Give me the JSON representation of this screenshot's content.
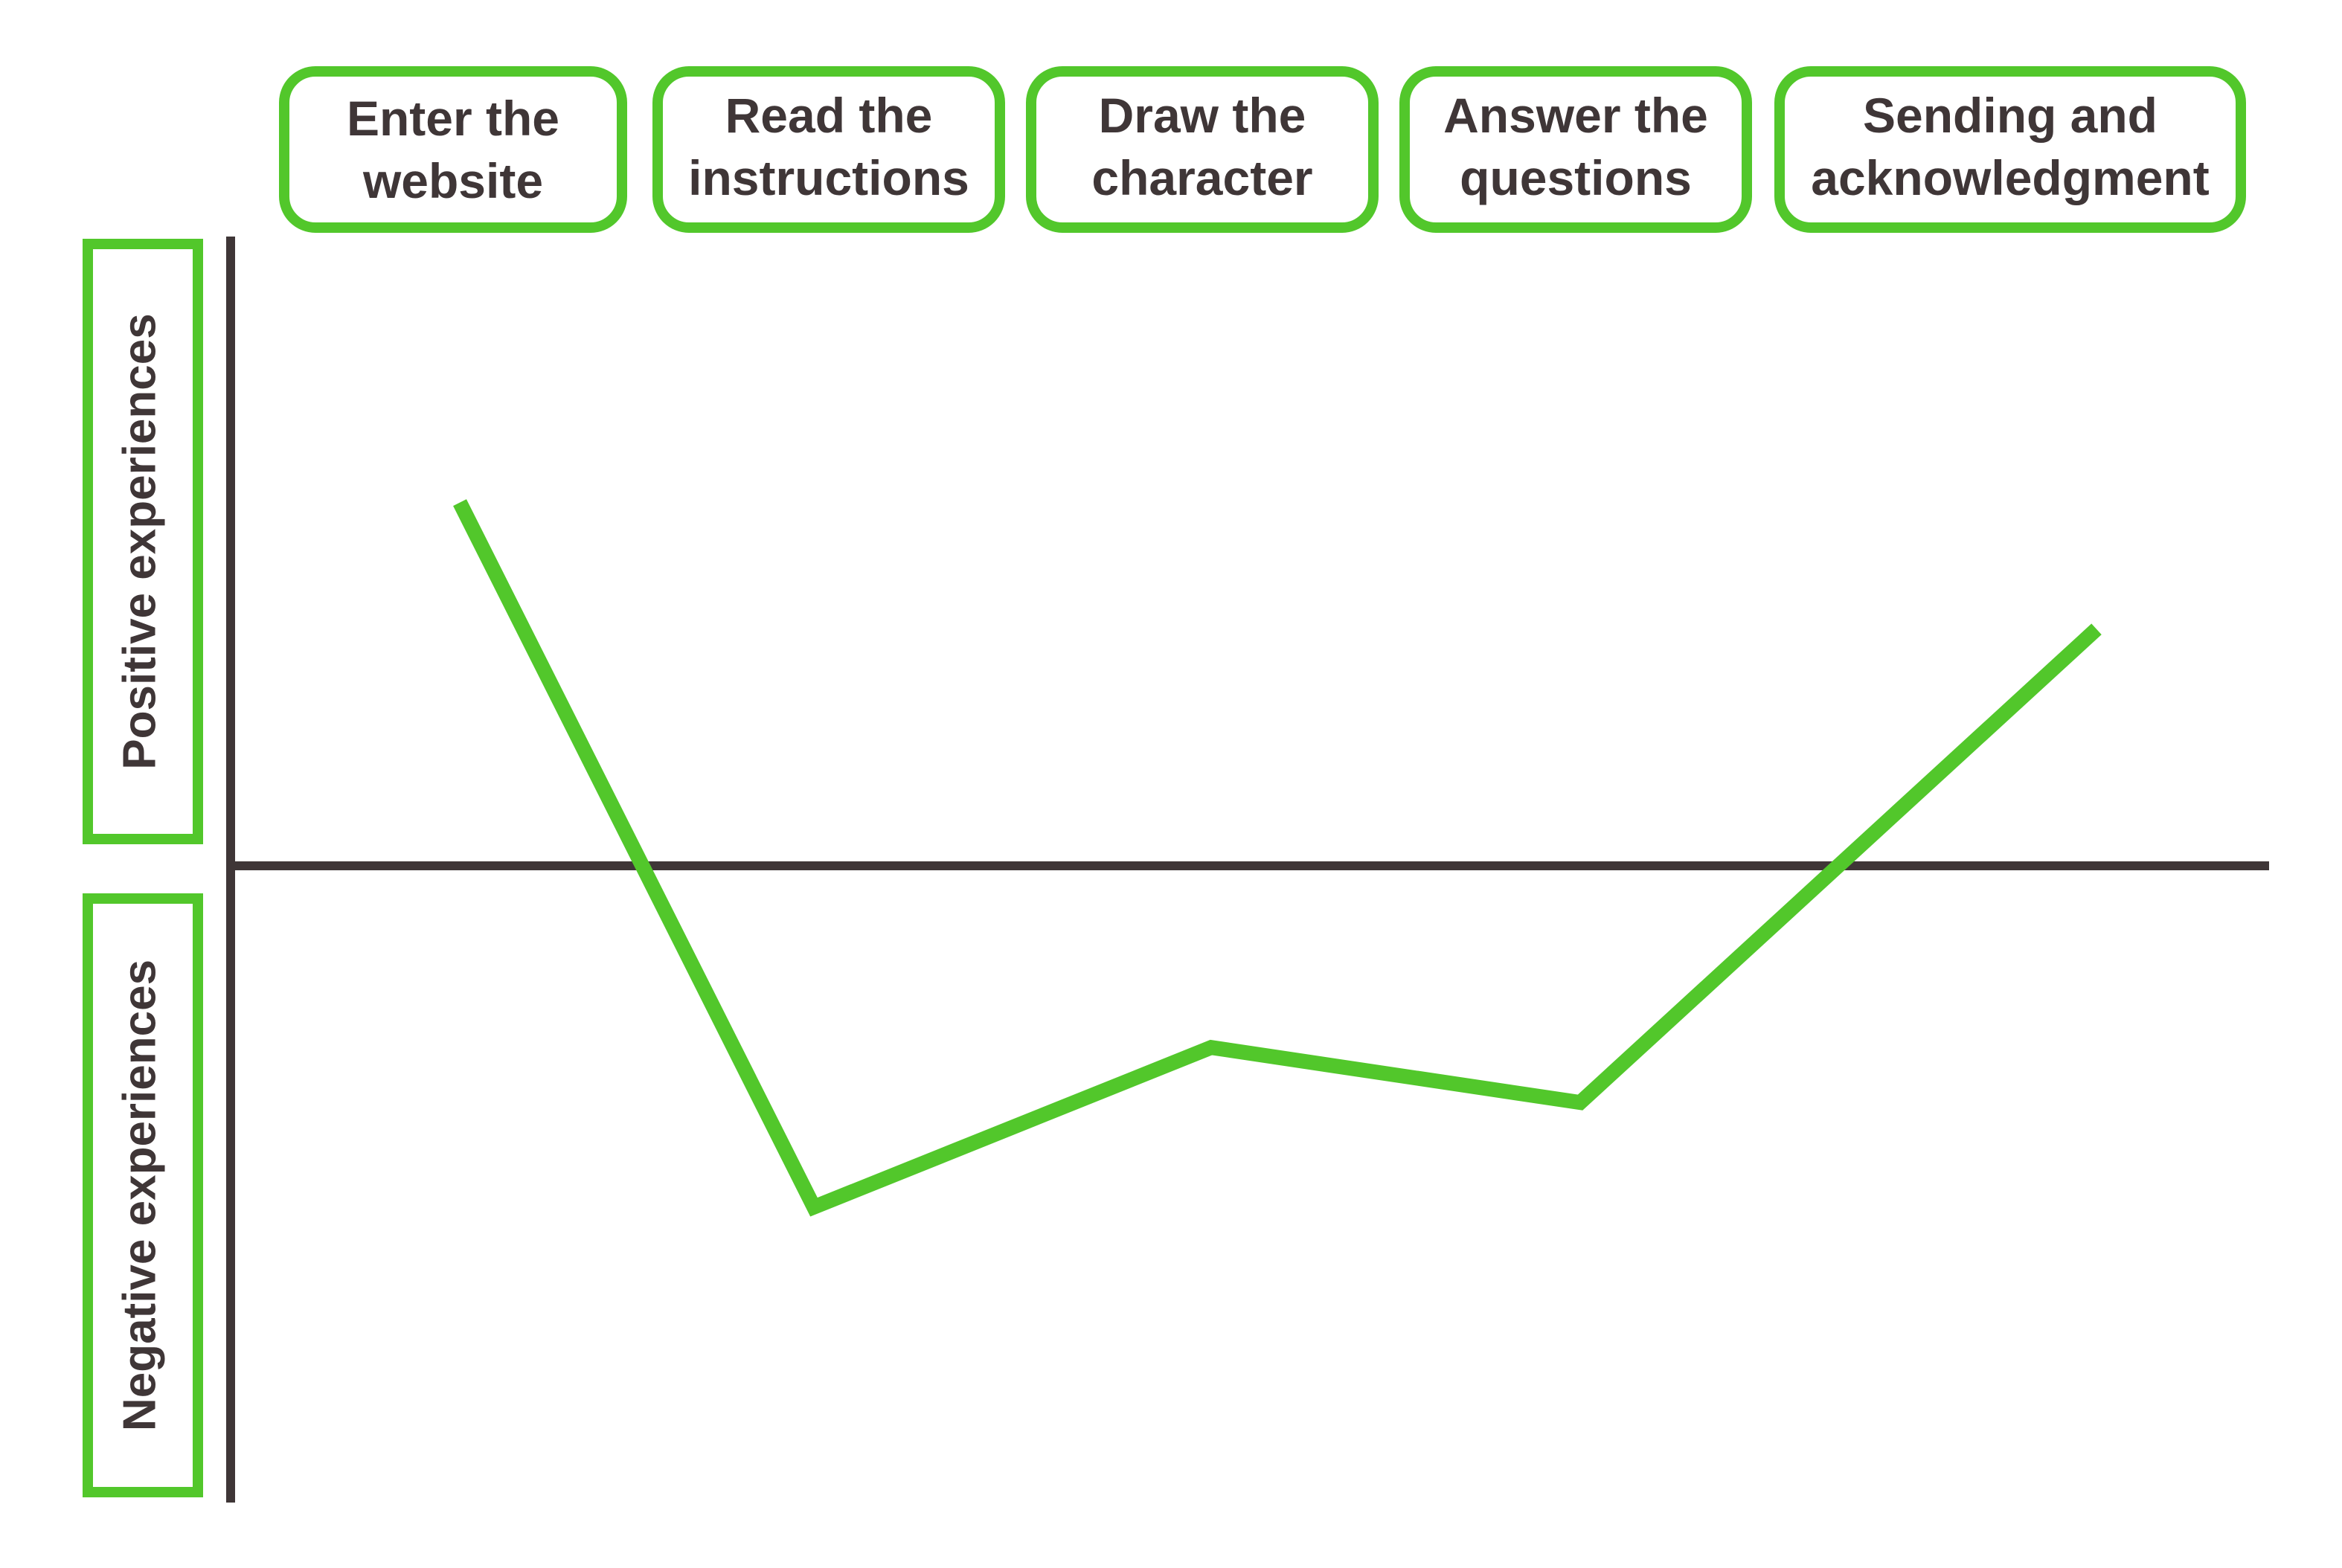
{
  "stages": [
    {
      "line1": "Enter the",
      "line2": "website"
    },
    {
      "line1": "Read the",
      "line2": "instructions"
    },
    {
      "line1": "Draw the",
      "line2": "character"
    },
    {
      "line1": "Answer the",
      "line2": "questions"
    },
    {
      "line1": "Sending and",
      "line2": "acknowledgment"
    }
  ],
  "axis": {
    "positive_label": "Positive experiences",
    "negative_label": "Negative experiences"
  },
  "experience_levels": [
    0.66,
    -0.62,
    -0.33,
    -0.43,
    0.43
  ],
  "colors": {
    "accent": "#52c72b",
    "text": "#3f3637",
    "axis": "#3f3637",
    "background": "#ffffff"
  }
}
